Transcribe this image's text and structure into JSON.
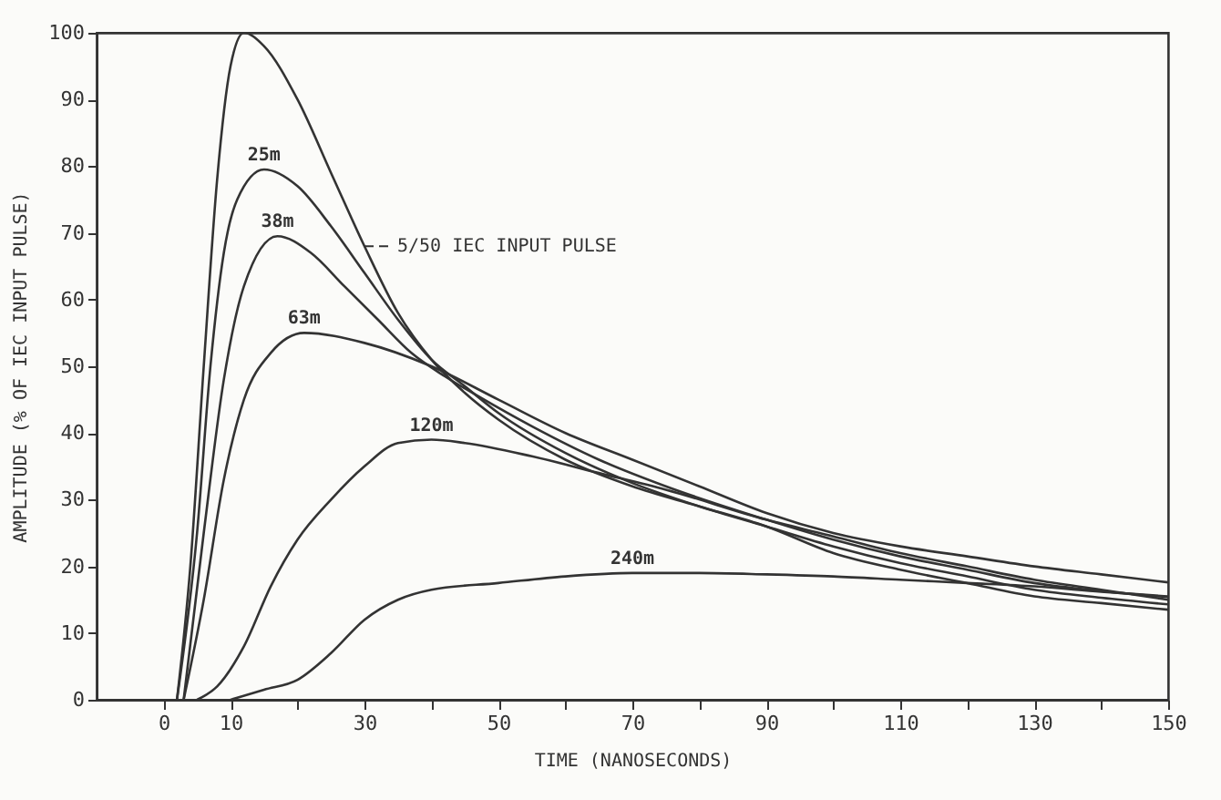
{
  "chart_data": {
    "type": "line",
    "xlabel": "TIME (NANOSECONDS)",
    "ylabel": "AMPLITUDE (% OF IEC INPUT PULSE)",
    "xlim": [
      -10,
      150
    ],
    "xticks": [
      0,
      10,
      {
        "value": 20,
        "label": null
      },
      30,
      {
        "value": 40,
        "label": null
      },
      50,
      {
        "value": 60,
        "label": null
      },
      70,
      {
        "value": 80,
        "label": null
      },
      90,
      {
        "value": 100,
        "label": null
      },
      110,
      {
        "value": 120,
        "label": null
      },
      130,
      {
        "value": 140,
        "label": null
      },
      150
    ],
    "ylim": [
      0,
      100
    ],
    "yticks": [
      0,
      10,
      20,
      30,
      40,
      50,
      60,
      70,
      80,
      90,
      100
    ],
    "grid": false,
    "legend": false,
    "line_style": "solid",
    "annotations": [
      {
        "text": "5/50 IEC INPUT PULSE",
        "x": 30,
        "y": 68
      }
    ],
    "series": [
      {
        "color": "#333333",
        "x": [
          2,
          4,
          6,
          8,
          10,
          12,
          15,
          20,
          25,
          30,
          35,
          40,
          45,
          50,
          60,
          70,
          80,
          90,
          100,
          110,
          120,
          130,
          140,
          150
        ],
        "values": [
          0,
          20,
          50,
          78,
          95,
          100,
          98,
          90,
          79,
          68,
          58,
          51,
          46,
          42,
          36,
          32,
          29,
          26,
          22,
          19.5,
          17.5,
          15.5,
          14.5,
          13.5
        ]
      },
      {
        "name": "25m",
        "color": "#333333",
        "x": [
          2,
          5,
          7,
          9,
          11,
          15,
          20,
          25,
          30,
          35,
          40,
          45,
          50,
          60,
          70,
          80,
          90,
          100,
          110,
          120,
          130,
          140,
          150
        ],
        "values": [
          0,
          25,
          50,
          67,
          75,
          79.5,
          77,
          71,
          64,
          57,
          51,
          47,
          43,
          37,
          32.5,
          29,
          26,
          23,
          20.5,
          18.5,
          16.5,
          15.3,
          14.3
        ]
      },
      {
        "name": "38m",
        "color": "#333333",
        "x": [
          3,
          6,
          9,
          12,
          17,
          22,
          27,
          32,
          37,
          42,
          47,
          55,
          65,
          75,
          90,
          100,
          110,
          120,
          130,
          140,
          150
        ],
        "values": [
          0,
          25,
          48,
          62,
          69.5,
          67,
          62,
          57,
          52,
          48.5,
          45.5,
          41,
          36,
          32,
          27,
          24,
          21.5,
          19.5,
          17.5,
          16.3,
          15.4
        ]
      },
      {
        "name": "63m",
        "color": "#333333",
        "x": [
          3,
          6,
          9,
          12,
          16,
          21,
          30,
          40,
          50,
          60,
          70,
          80,
          90,
          100,
          110,
          120,
          130,
          140,
          150
        ],
        "values": [
          0,
          15,
          33,
          45,
          52,
          55,
          53.5,
          50,
          45,
          40,
          36,
          32,
          28,
          25,
          23,
          21.5,
          20,
          18.8,
          17.6
        ]
      },
      {
        "name": "120m",
        "color": "#333333",
        "x": [
          5,
          8,
          12,
          16,
          20,
          25,
          30,
          35,
          40,
          45,
          55,
          65,
          75,
          90,
          100,
          110,
          120,
          130,
          140,
          150
        ],
        "values": [
          0,
          2,
          8,
          17,
          24,
          30,
          35,
          38.5,
          39,
          38.5,
          36.5,
          34,
          31.5,
          27,
          24.5,
          22,
          20,
          18,
          16.5,
          15
        ]
      },
      {
        "name": "240m",
        "color": "#333333",
        "x": [
          10,
          15,
          20,
          25,
          30,
          35,
          40,
          50,
          60,
          70,
          80,
          90,
          100,
          110,
          120,
          130,
          140,
          150
        ],
        "values": [
          0,
          1.5,
          3,
          7,
          12,
          15,
          16.5,
          17.5,
          18.5,
          19,
          19,
          18.8,
          18.5,
          18,
          17.5,
          17,
          16.2,
          15.5
        ]
      }
    ]
  }
}
